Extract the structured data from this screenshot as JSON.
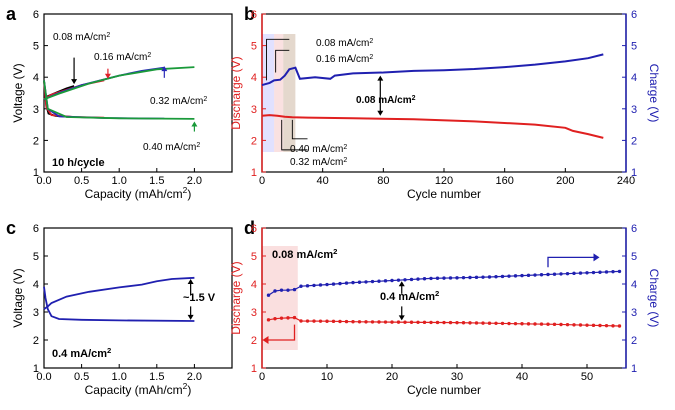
{
  "chart_data": [
    {
      "panel": "a",
      "type": "line",
      "xlabel": "Capacity (mAh/cm²)",
      "ylabel": "Voltage (V)",
      "xlim": [
        0,
        2.5
      ],
      "ylim": [
        1,
        6
      ],
      "xticks": [
        "0.0",
        "0.5",
        "1.0",
        "1.5",
        "2.0"
      ],
      "yticks": [
        "1",
        "2",
        "3",
        "4",
        "5",
        "6"
      ],
      "annotation_cycle": "10 h/cycle",
      "series": [
        {
          "name": "0.08 mA/cm²",
          "color": "#000000",
          "charge": [
            [
              0,
              3.3
            ],
            [
              0.05,
              3.4
            ],
            [
              0.1,
              3.45
            ],
            [
              0.2,
              3.55
            ],
            [
              0.3,
              3.65
            ],
            [
              0.4,
              3.72
            ]
          ],
          "discharge": [
            [
              0,
              3.9
            ],
            [
              0.03,
              3.1
            ],
            [
              0.06,
              2.85
            ],
            [
              0.15,
              2.78
            ],
            [
              0.3,
              2.75
            ],
            [
              0.4,
              2.74
            ]
          ],
          "label_xy": [
            0.4,
            4.7
          ]
        },
        {
          "name": "0.16 mA/cm²",
          "color": "#e0202a",
          "charge": [
            [
              0,
              3.3
            ],
            [
              0.1,
              3.45
            ],
            [
              0.3,
              3.6
            ],
            [
              0.5,
              3.75
            ],
            [
              0.8,
              3.9
            ]
          ],
          "discharge": [
            [
              0,
              3.9
            ],
            [
              0.03,
              3.05
            ],
            [
              0.1,
              2.8
            ],
            [
              0.4,
              2.74
            ],
            [
              0.8,
              2.72
            ]
          ],
          "label_xy": [
            0.85,
            4.35
          ]
        },
        {
          "name": "0.32 mA/cm²",
          "color": "#2a2ab8",
          "charge": [
            [
              0,
              3.3
            ],
            [
              0.2,
              3.5
            ],
            [
              0.5,
              3.75
            ],
            [
              1.0,
              4.05
            ],
            [
              1.3,
              4.2
            ],
            [
              1.6,
              4.3
            ]
          ],
          "discharge": [
            [
              0,
              3.9
            ],
            [
              0.05,
              3.0
            ],
            [
              0.2,
              2.76
            ],
            [
              0.8,
              2.71
            ],
            [
              1.6,
              2.69
            ]
          ],
          "label_xy": [
            1.55,
            3.55
          ]
        },
        {
          "name": "0.40 mA/cm²",
          "color": "#1a9a3a",
          "charge": [
            [
              0,
              3.3
            ],
            [
              0.2,
              3.48
            ],
            [
              0.6,
              3.8
            ],
            [
              1.0,
              4.05
            ],
            [
              1.5,
              4.25
            ],
            [
              2.0,
              4.32
            ]
          ],
          "discharge": [
            [
              0,
              3.9
            ],
            [
              0.05,
              3.0
            ],
            [
              0.3,
              2.74
            ],
            [
              1.0,
              2.7
            ],
            [
              2.0,
              2.68
            ]
          ],
          "label_xy": [
            1.95,
            2.25
          ]
        }
      ]
    },
    {
      "panel": "b",
      "type": "line",
      "xlabel": "Cycle number",
      "ylabel_left": "Discharge (V)",
      "ylabel_right": "Charge (V)",
      "xlim": [
        0,
        240
      ],
      "ylim": [
        1,
        6
      ],
      "xticks": [
        "0",
        "40",
        "80",
        "120",
        "160",
        "200",
        "240"
      ],
      "yticks": [
        "1",
        "2",
        "3",
        "4",
        "5",
        "6"
      ],
      "rate_labels": [
        "0.08 mA/cm²",
        "0.16 mA/cm²",
        "0.08 mA/cm²",
        "0.40 mA/cm²",
        "0.32 mA/cm²"
      ],
      "charge_series": [
        [
          0,
          3.75
        ],
        [
          5,
          3.82
        ],
        [
          8,
          3.9
        ],
        [
          12,
          3.92
        ],
        [
          15,
          4.05
        ],
        [
          18,
          4.25
        ],
        [
          22,
          4.3
        ],
        [
          25,
          3.95
        ],
        [
          35,
          4.0
        ],
        [
          45,
          3.95
        ],
        [
          48,
          4.05
        ],
        [
          60,
          4.12
        ],
        [
          80,
          4.15
        ],
        [
          100,
          4.2
        ],
        [
          120,
          4.22
        ],
        [
          140,
          4.26
        ],
        [
          160,
          4.32
        ],
        [
          180,
          4.4
        ],
        [
          200,
          4.5
        ],
        [
          215,
          4.6
        ],
        [
          225,
          4.72
        ]
      ],
      "discharge_series": [
        [
          0,
          2.78
        ],
        [
          5,
          2.8
        ],
        [
          10,
          2.78
        ],
        [
          15,
          2.75
        ],
        [
          20,
          2.73
        ],
        [
          30,
          2.72
        ],
        [
          60,
          2.7
        ],
        [
          100,
          2.67
        ],
        [
          140,
          2.6
        ],
        [
          180,
          2.5
        ],
        [
          200,
          2.4
        ],
        [
          205,
          2.3
        ],
        [
          215,
          2.2
        ],
        [
          225,
          2.08
        ]
      ]
    },
    {
      "panel": "c",
      "type": "line",
      "xlabel": "Capacity (mAh/cm²)",
      "ylabel": "Voltage (V)",
      "xlim": [
        0,
        2.5
      ],
      "ylim": [
        1,
        6
      ],
      "xticks": [
        "0.0",
        "0.5",
        "1.0",
        "1.5",
        "2.0"
      ],
      "yticks": [
        "1",
        "2",
        "3",
        "4",
        "5",
        "6"
      ],
      "gap_label": "~1.5 V",
      "rate_label": "0.4 mA/cm²",
      "series": [
        {
          "name": "0.4 mA/cm²",
          "color": "#2020b0",
          "charge": [
            [
              0,
              3.1
            ],
            [
              0.05,
              3.2
            ],
            [
              0.1,
              3.32
            ],
            [
              0.3,
              3.55
            ],
            [
              0.6,
              3.72
            ],
            [
              1.0,
              3.88
            ],
            [
              1.3,
              3.98
            ],
            [
              1.5,
              4.1
            ],
            [
              1.7,
              4.18
            ],
            [
              2.0,
              4.22
            ]
          ],
          "discharge": [
            [
              0,
              3.9
            ],
            [
              0.02,
              3.5
            ],
            [
              0.05,
              3.1
            ],
            [
              0.1,
              2.85
            ],
            [
              0.2,
              2.75
            ],
            [
              0.5,
              2.72
            ],
            [
              1.0,
              2.7
            ],
            [
              2.0,
              2.68
            ]
          ]
        }
      ]
    },
    {
      "panel": "d",
      "type": "line",
      "xlabel": "Cycle number",
      "ylabel_left": "Discharge (V)",
      "ylabel_right": "Charge (V)",
      "xlim": [
        0,
        56
      ],
      "ylim": [
        1,
        6
      ],
      "xticks": [
        "0",
        "10",
        "20",
        "30",
        "40",
        "50"
      ],
      "yticks": [
        "1",
        "2",
        "3",
        "4",
        "5",
        "6"
      ],
      "rate_labels": [
        "0.08 mA/cm²",
        "0.4 mA/cm²"
      ],
      "charge_series": [
        [
          1,
          3.6
        ],
        [
          2,
          3.75
        ],
        [
          3,
          3.78
        ],
        [
          4,
          3.78
        ],
        [
          5,
          3.8
        ],
        [
          6,
          3.92
        ],
        [
          8,
          3.95
        ],
        [
          10,
          3.98
        ],
        [
          14,
          4.05
        ],
        [
          18,
          4.1
        ],
        [
          22,
          4.15
        ],
        [
          26,
          4.2
        ],
        [
          30,
          4.22
        ],
        [
          35,
          4.25
        ],
        [
          40,
          4.3
        ],
        [
          45,
          4.35
        ],
        [
          50,
          4.4
        ],
        [
          55,
          4.45
        ]
      ],
      "discharge_series": [
        [
          1,
          2.72
        ],
        [
          2,
          2.76
        ],
        [
          3,
          2.78
        ],
        [
          4,
          2.79
        ],
        [
          5,
          2.8
        ],
        [
          6,
          2.68
        ],
        [
          10,
          2.67
        ],
        [
          15,
          2.65
        ],
        [
          20,
          2.64
        ],
        [
          25,
          2.63
        ],
        [
          30,
          2.62
        ],
        [
          35,
          2.6
        ],
        [
          40,
          2.58
        ],
        [
          45,
          2.56
        ],
        [
          50,
          2.53
        ],
        [
          55,
          2.5
        ]
      ]
    }
  ],
  "panel_letters": [
    "a",
    "b",
    "c",
    "d"
  ],
  "colors": {
    "black": "#000000",
    "red": "#e0202a",
    "blue": "#2a2ab8",
    "green": "#1a9a3a",
    "discharge_axis": "#e02020",
    "charge_axis": "#2020b0"
  }
}
